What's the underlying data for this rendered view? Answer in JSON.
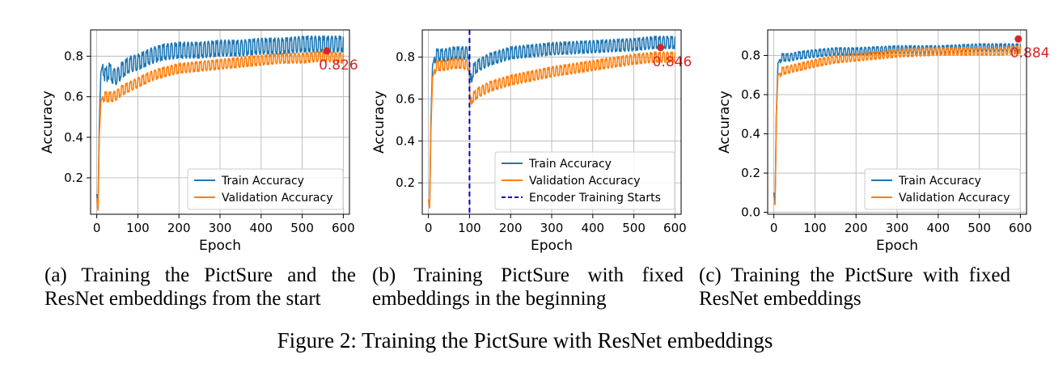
{
  "chart_data": [
    {
      "type": "line",
      "caption": "(a) Training the PictSure and the ResNet embeddings from the start",
      "xlabel": "Epoch",
      "ylabel": "Accuracy",
      "xlim": [
        -15,
        615
      ],
      "ylim": [
        0.02,
        0.93
      ],
      "xticks": [
        0,
        100,
        200,
        300,
        400,
        500,
        600
      ],
      "yticks": [
        0.2,
        0.4,
        0.6,
        0.8
      ],
      "ytick_labels": [
        "0.2",
        "0.4",
        "0.6",
        "0.8"
      ],
      "grid": true,
      "legend_position": "lower-right",
      "series": [
        {
          "name": "Train Accuracy",
          "color": "#1f77b4",
          "x": [
            0,
            3,
            6,
            10,
            15,
            20,
            30,
            40,
            50,
            60,
            80,
            100,
            130,
            160,
            200,
            250,
            300,
            350,
            400,
            450,
            500,
            550,
            600
          ],
          "y": [
            0.12,
            0.05,
            0.45,
            0.72,
            0.76,
            0.7,
            0.73,
            0.7,
            0.7,
            0.73,
            0.76,
            0.77,
            0.8,
            0.82,
            0.83,
            0.83,
            0.84,
            0.84,
            0.85,
            0.85,
            0.86,
            0.86,
            0.86
          ],
          "oscillation": 0.04
        },
        {
          "name": "Validation Accuracy",
          "color": "#ff7f0e",
          "x": [
            0,
            3,
            6,
            10,
            15,
            20,
            30,
            40,
            50,
            60,
            80,
            100,
            130,
            160,
            200,
            250,
            300,
            350,
            400,
            450,
            500,
            550,
            600
          ],
          "y": [
            0.1,
            0.04,
            0.4,
            0.58,
            0.6,
            0.6,
            0.6,
            0.6,
            0.61,
            0.63,
            0.65,
            0.67,
            0.7,
            0.72,
            0.74,
            0.75,
            0.76,
            0.77,
            0.78,
            0.79,
            0.79,
            0.8,
            0.79
          ],
          "oscillation": 0.025
        }
      ],
      "marker": {
        "x": 560,
        "y": 0.826,
        "label": "0.826",
        "color": "#d62728"
      },
      "vline": null
    },
    {
      "type": "line",
      "caption": "(b) Training PictSure with fixed embeddings in the beginning",
      "xlabel": "Epoch",
      "ylabel": "Accuracy",
      "xlim": [
        -15,
        615
      ],
      "ylim": [
        0.05,
        0.93
      ],
      "xticks": [
        0,
        100,
        200,
        300,
        400,
        500,
        600
      ],
      "yticks": [
        0.2,
        0.4,
        0.6,
        0.8
      ],
      "ytick_labels": [
        "0.2",
        "0.4",
        "0.6",
        "0.8"
      ],
      "grid": true,
      "legend_position": "lower-right",
      "series": [
        {
          "name": "Train Accuracy",
          "color": "#1f77b4",
          "x": [
            0,
            3,
            6,
            10,
            15,
            20,
            40,
            60,
            80,
            99,
            101,
            105,
            110,
            120,
            150,
            200,
            250,
            300,
            400,
            500,
            550,
            600
          ],
          "y": [
            0.12,
            0.09,
            0.5,
            0.76,
            0.8,
            0.81,
            0.81,
            0.82,
            0.82,
            0.82,
            0.66,
            0.71,
            0.74,
            0.76,
            0.79,
            0.82,
            0.83,
            0.84,
            0.85,
            0.86,
            0.87,
            0.87
          ],
          "oscillation": 0.03
        },
        {
          "name": "Validation Accuracy",
          "color": "#ff7f0e",
          "x": [
            0,
            3,
            6,
            10,
            15,
            20,
            40,
            60,
            80,
            99,
            101,
            105,
            110,
            120,
            150,
            200,
            250,
            300,
            400,
            500,
            550,
            600
          ],
          "y": [
            0.12,
            0.08,
            0.45,
            0.7,
            0.74,
            0.76,
            0.76,
            0.77,
            0.77,
            0.76,
            0.56,
            0.6,
            0.61,
            0.63,
            0.66,
            0.69,
            0.71,
            0.73,
            0.76,
            0.79,
            0.8,
            0.8
          ],
          "oscillation": 0.025
        },
        {
          "name": "Encoder Training Starts",
          "color": "#0000cc",
          "dashed": true,
          "vline_x": 100
        }
      ],
      "marker": {
        "x": 565,
        "y": 0.846,
        "label": "0.846",
        "color": "#d62728"
      },
      "vline": {
        "x": 100,
        "color": "#0000cc"
      }
    },
    {
      "type": "line",
      "caption": "(c) Training the PictSure with fixed ResNet embeddings",
      "xlabel": "Epoch",
      "ylabel": "Accuracy",
      "xlim": [
        -15,
        615
      ],
      "ylim": [
        -0.01,
        0.93
      ],
      "xticks": [
        0,
        100,
        200,
        300,
        400,
        500,
        600
      ],
      "yticks": [
        0.0,
        0.2,
        0.4,
        0.6,
        0.8
      ],
      "ytick_labels": [
        "0.0",
        "0.2",
        "0.4",
        "0.6",
        "0.8"
      ],
      "grid": true,
      "legend_position": "lower-right",
      "series": [
        {
          "name": "Train Accuracy",
          "color": "#1f77b4",
          "x": [
            0,
            3,
            6,
            10,
            15,
            20,
            40,
            60,
            100,
            150,
            200,
            300,
            400,
            500,
            550,
            600
          ],
          "y": [
            0.1,
            0.05,
            0.5,
            0.76,
            0.78,
            0.79,
            0.79,
            0.8,
            0.81,
            0.82,
            0.82,
            0.83,
            0.83,
            0.84,
            0.84,
            0.84
          ],
          "oscillation": 0.02
        },
        {
          "name": "Validation Accuracy",
          "color": "#ff7f0e",
          "x": [
            0,
            3,
            6,
            10,
            15,
            20,
            40,
            60,
            100,
            150,
            200,
            300,
            400,
            500,
            550,
            600
          ],
          "y": [
            0.05,
            0.04,
            0.5,
            0.7,
            0.71,
            0.72,
            0.73,
            0.74,
            0.76,
            0.78,
            0.79,
            0.81,
            0.82,
            0.82,
            0.82,
            0.83
          ],
          "oscillation": 0.02
        }
      ],
      "marker": {
        "x": 595,
        "y": 0.884,
        "label": "0.884",
        "color": "#d62728"
      },
      "vline": null
    }
  ],
  "figure_caption": "Figure 2: Training the PictSure with ResNet embeddings"
}
